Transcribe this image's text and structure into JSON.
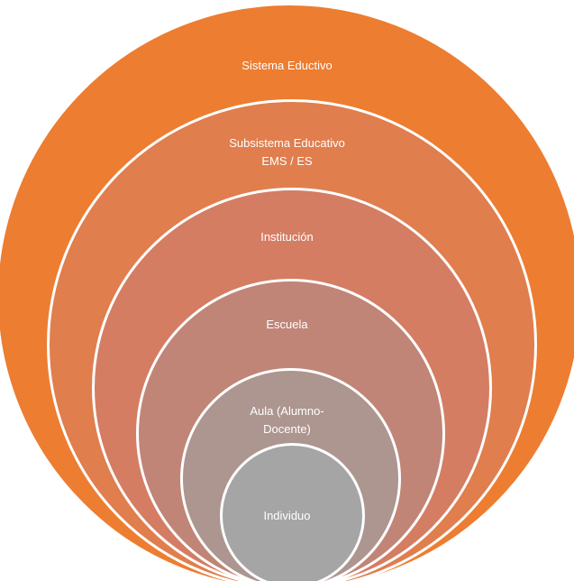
{
  "diagram": {
    "levels": [
      {
        "lines": [
          "Sistema Eductivo"
        ],
        "color": "#ed7d31"
      },
      {
        "lines": [
          "Subsistema Educativo",
          "EMS / ES"
        ],
        "color": "#e07e4e"
      },
      {
        "lines": [
          "Institución"
        ],
        "color": "#d47d63"
      },
      {
        "lines": [
          "Escuela"
        ],
        "color": "#c08577"
      },
      {
        "lines": [
          "Aula (Alumno-",
          "Docente)"
        ],
        "color": "#ad9590"
      },
      {
        "lines": [
          "Individuo"
        ],
        "color": "#a5a5a5"
      }
    ]
  }
}
